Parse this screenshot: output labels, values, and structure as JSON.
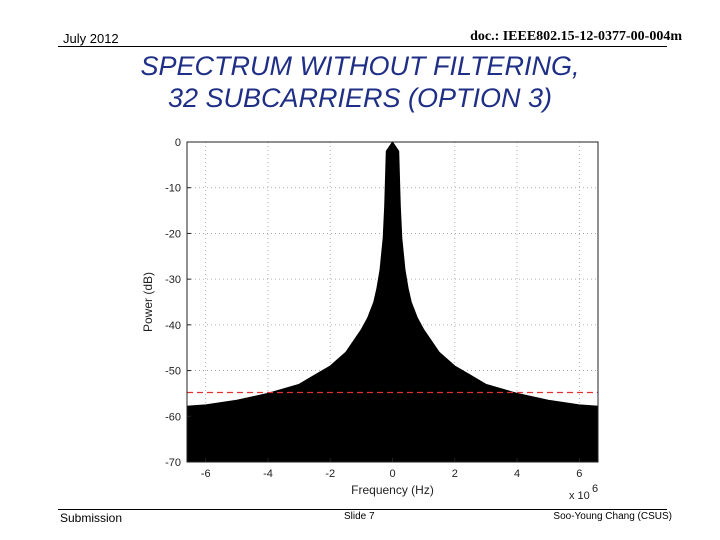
{
  "header": {
    "date": "July 2012",
    "doc_id": "doc.: IEEE802.15-12-0377-00-004m"
  },
  "slide": {
    "title_line1": "SPECTRUM WITHOUT FILTERING,",
    "title_line2": "32 SUBCARRIERS (OPTION 3)",
    "title_color": "#1f2f86"
  },
  "footer": {
    "left": "Submission",
    "middle": "Slide 7",
    "right": "Soo-Young Chang (CSUS)"
  },
  "chart_data": {
    "type": "area",
    "xlabel": "Frequency (Hz)",
    "ylabel": "Power (dB)",
    "x_multiplier": "x 10",
    "x_multiplier_exp": "6",
    "xlim": [
      -6.6,
      6.6
    ],
    "ylim": [
      -70,
      0
    ],
    "x_ticks": [
      -6,
      -4,
      -2,
      0,
      2,
      4,
      6
    ],
    "y_ticks": [
      0,
      -10,
      -20,
      -30,
      -40,
      -50,
      -60,
      -70
    ],
    "x_tick_labels": [
      "-6",
      "-4",
      "-2",
      "0",
      "2",
      "4",
      "6"
    ],
    "y_tick_labels": [
      "0",
      "-10",
      "-20",
      "-30",
      "-40",
      "-50",
      "-60",
      "-70"
    ],
    "grid": true,
    "fill_color": "#000000",
    "series": [
      {
        "x": [
          -6.6,
          -6.0,
          -5.0,
          -4.0,
          -3.0,
          -2.5,
          -2.0,
          -1.5,
          -1.2,
          -1.0,
          -0.8,
          -0.6,
          -0.5,
          -0.4,
          -0.3,
          -0.25,
          -0.2,
          0.0,
          0.2,
          0.25,
          0.3,
          0.4,
          0.5,
          0.6,
          0.8,
          1.0,
          1.2,
          1.5,
          2.0,
          2.5,
          3.0,
          4.0,
          5.0,
          6.0,
          6.6
        ],
        "y": [
          -57.8,
          -57.5,
          -56.5,
          -55.0,
          -53.0,
          -51.0,
          -49.0,
          -46.0,
          -43.0,
          -41.0,
          -38.5,
          -35.0,
          -32.0,
          -28.0,
          -21.0,
          -14.0,
          -2.0,
          0.0,
          -2.0,
          -14.0,
          -21.0,
          -28.0,
          -32.0,
          -35.0,
          -38.5,
          -41.0,
          -43.0,
          -46.0,
          -49.0,
          -51.0,
          -53.0,
          -55.0,
          -56.5,
          -57.5,
          -57.8
        ]
      }
    ],
    "reference_line": {
      "y": -54.8,
      "color": "#e03030",
      "style": "dashed"
    }
  }
}
